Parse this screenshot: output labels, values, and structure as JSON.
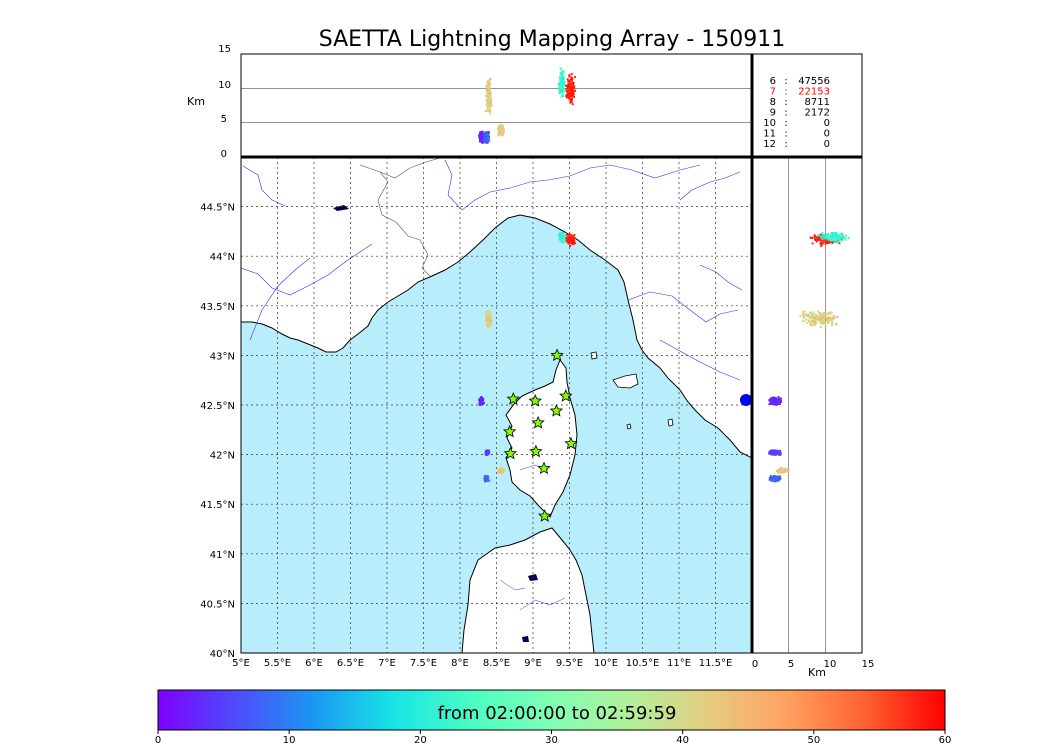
{
  "title": "SAETTA Lightning Mapping Array - 150911",
  "colorbar": {
    "label": "from 02:00:00 to 02:59:59",
    "ticks": [
      "0",
      "10",
      "20",
      "30",
      "40",
      "50",
      "60"
    ],
    "range": [
      0,
      60
    ],
    "colors": [
      "#7f00ff",
      "#4d4dfc",
      "#1a99f2",
      "#19e5e5",
      "#4cfdc4",
      "#80ffb3",
      "#b3f09a",
      "#e6cc80",
      "#ffa060",
      "#ff6030",
      "#ff0000"
    ]
  },
  "altitude_panel": {
    "ylabel": "Km",
    "ylim": [
      0,
      15
    ],
    "yticks": [
      "0",
      "5",
      "10",
      "15"
    ]
  },
  "side_panel": {
    "xlabel": "Km",
    "xlim": [
      0,
      15
    ],
    "xticks": [
      "0",
      "5",
      "10",
      "15"
    ]
  },
  "map": {
    "lon_range": [
      5,
      12
    ],
    "lat_range": [
      40,
      45
    ],
    "lon_ticks": [
      "5°E",
      "5.5°E",
      "6°E",
      "6.5°E",
      "7°E",
      "7.5°E",
      "8°E",
      "8.5°E",
      "9°E",
      "9.5°E",
      "10°E",
      "10.5°E",
      "11°E",
      "11.5°E"
    ],
    "lat_ticks": [
      "40°N",
      "40.5°N",
      "41°N",
      "41.5°N",
      "42°N",
      "42.5°N",
      "43°N",
      "43.5°N",
      "44°N",
      "44.5°N"
    ],
    "sea_color": "#b8eefc",
    "land_color": "#ffffff",
    "grid": true
  },
  "counts": [
    {
      "label": "6",
      "sep": ":",
      "value": "47556",
      "color": "#000000"
    },
    {
      "label": "7",
      "sep": ":",
      "value": "22153",
      "color": "#ff0000"
    },
    {
      "label": "8",
      "sep": ":",
      "value": "8711",
      "color": "#000000"
    },
    {
      "label": "9",
      "sep": ":",
      "value": "2172",
      "color": "#000000"
    },
    {
      "label": "10",
      "sep": ":",
      "value": "0",
      "color": "#000000"
    },
    {
      "label": "11",
      "sep": ":",
      "value": "0",
      "color": "#000000"
    },
    {
      "label": "12",
      "sep": ":",
      "value": "0",
      "color": "#000000"
    }
  ],
  "stations": [
    {
      "lon": 9.33,
      "lat": 43.0
    },
    {
      "lon": 8.73,
      "lat": 42.56
    },
    {
      "lon": 9.03,
      "lat": 42.54
    },
    {
      "lon": 9.45,
      "lat": 42.59
    },
    {
      "lon": 9.32,
      "lat": 42.44
    },
    {
      "lon": 9.07,
      "lat": 42.32
    },
    {
      "lon": 8.68,
      "lat": 42.23
    },
    {
      "lon": 9.52,
      "lat": 42.11
    },
    {
      "lon": 8.69,
      "lat": 42.01
    },
    {
      "lon": 9.04,
      "lat": 42.03
    },
    {
      "lon": 9.15,
      "lat": 41.86
    },
    {
      "lon": 9.16,
      "lat": 41.38
    }
  ],
  "clusters": [
    {
      "lon": 9.5,
      "lat": 44.18,
      "lon_spread": 0.08,
      "lat_spread": 0.07,
      "alt": 10,
      "alt_spread": 2.5,
      "t": 58,
      "t_spread": 3
    },
    {
      "lon": 9.38,
      "lat": 44.2,
      "lon_spread": 0.05,
      "lat_spread": 0.06,
      "alt": 11,
      "alt_spread": 2.5,
      "t": 22,
      "t_spread": 6
    },
    {
      "lon": 8.38,
      "lat": 43.38,
      "lon_spread": 0.05,
      "lat_spread": 0.1,
      "alt": 9,
      "alt_spread": 3,
      "t": 42,
      "t_spread": 9
    },
    {
      "lon": 8.28,
      "lat": 42.55,
      "lon_spread": 0.04,
      "lat_spread": 0.05,
      "alt": 3,
      "alt_spread": 1,
      "t": 3,
      "t_spread": 2
    },
    {
      "lon": 8.36,
      "lat": 42.03,
      "lon_spread": 0.03,
      "lat_spread": 0.03,
      "alt": 3,
      "alt_spread": 1,
      "t": 5,
      "t_spread": 2
    },
    {
      "lon": 8.35,
      "lat": 41.77,
      "lon_spread": 0.04,
      "lat_spread": 0.04,
      "alt": 3,
      "alt_spread": 1,
      "t": 8,
      "t_spread": 4
    },
    {
      "lon": 8.55,
      "lat": 41.85,
      "lon_spread": 0.05,
      "lat_spread": 0.03,
      "alt": 4,
      "alt_spread": 1,
      "t": 42,
      "t_spread": 5
    }
  ]
}
